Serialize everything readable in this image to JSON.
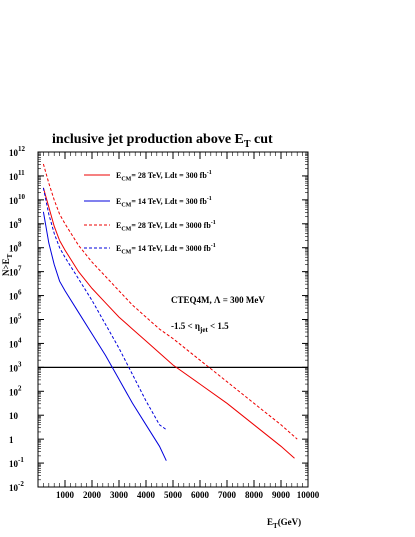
{
  "chart_data": {
    "type": "line",
    "title": {
      "main": "inclusive jet production above E",
      "sub": "T",
      "tail": " cut"
    },
    "xlabel": {
      "main": "E",
      "sub": "T",
      "tail": "(GeV)"
    },
    "ylabel": {
      "main": "N>E",
      "sub": "T"
    },
    "xlim": [
      0,
      10000
    ],
    "ylim_log10": [
      -2,
      12
    ],
    "yscale": "log",
    "x_ticks": [
      "1000",
      "2000",
      "3000",
      "4000",
      "5000",
      "6000",
      "7000",
      "8000",
      "9000",
      "10000"
    ],
    "y_ticks": [
      {
        "base": "10",
        "exp": "12"
      },
      {
        "base": "10",
        "exp": "11"
      },
      {
        "base": "10",
        "exp": "10"
      },
      {
        "base": "10",
        "exp": "9"
      },
      {
        "base": "10",
        "exp": "8"
      },
      {
        "base": "10",
        "exp": "7"
      },
      {
        "base": "10",
        "exp": "6"
      },
      {
        "base": "10",
        "exp": "5"
      },
      {
        "base": "10",
        "exp": "4"
      },
      {
        "base": "10",
        "exp": "3"
      },
      {
        "base": "10",
        "exp": "2"
      },
      {
        "base": "10",
        "exp": ""
      },
      {
        "base": "1",
        "exp": ""
      },
      {
        "base": "10",
        "exp": "-1"
      },
      {
        "base": "10",
        "exp": "-2"
      }
    ],
    "reference_line": {
      "y_log10": 3,
      "color": "#000000"
    },
    "annotations": [
      {
        "text": "CTEQ4M, Λ = 300 MeV"
      },
      {
        "pre": "-1.5 < η",
        "sub": "jet",
        "post": " < 1.5"
      }
    ],
    "series": [
      {
        "legend": {
          "e": "E",
          "sub": "CM",
          "mid": "= 28 TeV, Ldt = 300 fb",
          "sup": "-1"
        },
        "color": "#ee0000",
        "dash": "solid",
        "x": [
          200,
          400,
          600,
          800,
          1000,
          1500,
          2000,
          2500,
          3000,
          3500,
          4000,
          4500,
          5000,
          6000,
          7000,
          8000,
          9000,
          9500
        ],
        "y_log10": [
          10.5,
          9.7,
          8.9,
          8.3,
          7.9,
          7.0,
          6.3,
          5.7,
          5.1,
          4.6,
          4.1,
          3.6,
          3.1,
          2.3,
          1.5,
          0.6,
          -0.3,
          -0.8
        ]
      },
      {
        "legend": {
          "e": "E",
          "sub": "CM",
          "mid": "= 14 TeV, Ldt = 300 fb",
          "sup": "-1"
        },
        "color": "#0000dd",
        "dash": "solid",
        "x": [
          200,
          400,
          600,
          800,
          1000,
          1500,
          2000,
          2500,
          3000,
          3500,
          4000,
          4500,
          4750
        ],
        "y_log10": [
          9.5,
          8.2,
          7.3,
          6.6,
          6.2,
          5.3,
          4.4,
          3.5,
          2.5,
          1.5,
          0.6,
          -0.3,
          -0.9
        ]
      },
      {
        "legend": {
          "e": "E",
          "sub": "CM",
          "mid": "= 28 TeV, Ldt = 3000 fb",
          "sup": "-1"
        },
        "color": "#ee0000",
        "dash": "dashed",
        "x": [
          200,
          400,
          600,
          800,
          1000,
          1500,
          2000,
          2500,
          3000,
          3500,
          4000,
          4500,
          5000,
          6000,
          7000,
          8000,
          9000,
          9600
        ],
        "y_log10": [
          11.5,
          10.7,
          10.0,
          9.4,
          9.0,
          8.1,
          7.4,
          6.8,
          6.2,
          5.6,
          5.1,
          4.6,
          4.2,
          3.3,
          2.4,
          1.5,
          0.6,
          0.0
        ]
      },
      {
        "legend": {
          "e": "E",
          "sub": "CM",
          "mid": "= 14 TeV, Ldt = 3000 fb",
          "sup": "-1"
        },
        "color": "#0000dd",
        "dash": "dashed",
        "x": [
          200,
          400,
          600,
          800,
          1000,
          1500,
          2000,
          2500,
          3000,
          3500,
          4000,
          4500,
          4750
        ],
        "y_log10": [
          10.5,
          9.4,
          8.6,
          8.0,
          7.6,
          6.7,
          5.8,
          4.8,
          3.8,
          2.7,
          1.6,
          0.6,
          0.4
        ]
      }
    ]
  }
}
